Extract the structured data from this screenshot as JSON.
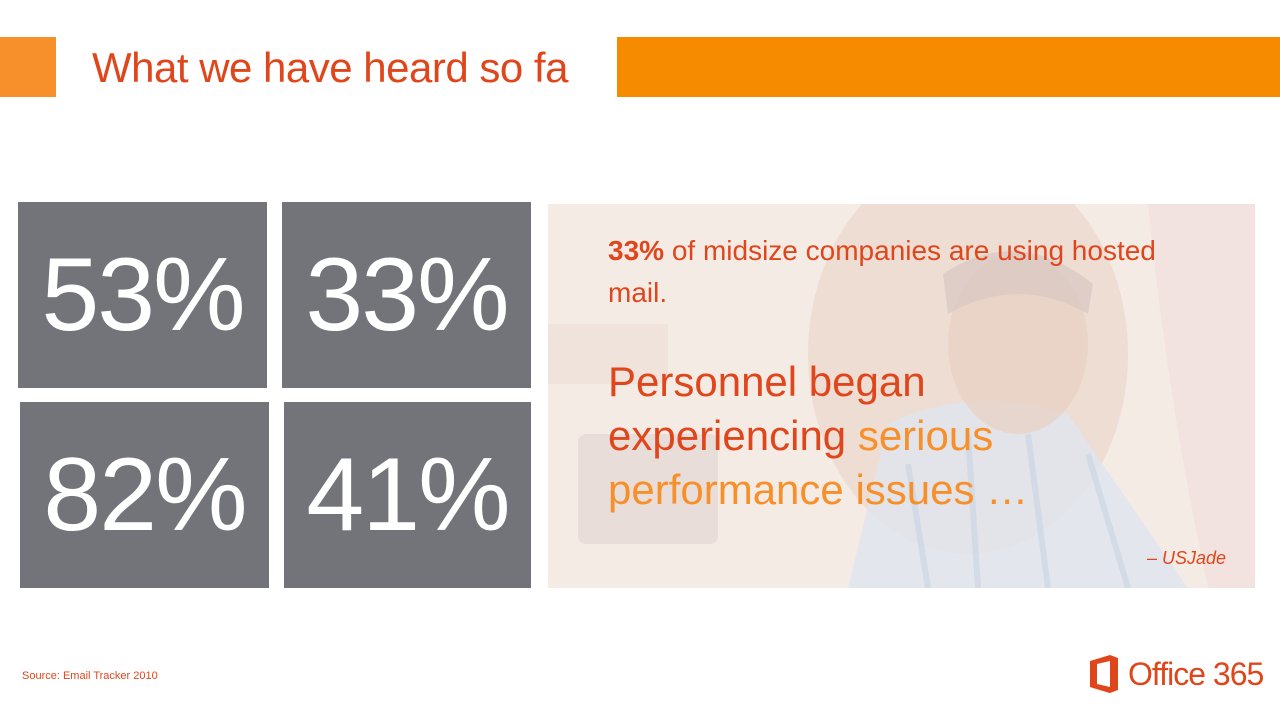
{
  "header": {
    "title": "What we have heard so fa"
  },
  "stats": {
    "tile1": "53%",
    "tile2": "33%",
    "tile3": "82%",
    "tile4": "41%"
  },
  "callout": {
    "stat_bold": "33%",
    "stat_text": " of midsize companies are using hosted mail.",
    "quote_part1": "Personnel began experiencing ",
    "quote_highlight": "serious performance issues …",
    "attribution": "– USJade"
  },
  "footer": {
    "source": "Source: Email Tracker 2010",
    "logo_text": "Office 365"
  },
  "colors": {
    "accent_orange": "#f78b00",
    "title_red": "#e0461c",
    "tile_gray": "#737479"
  },
  "icons": {
    "logo": "office-logo-icon"
  }
}
